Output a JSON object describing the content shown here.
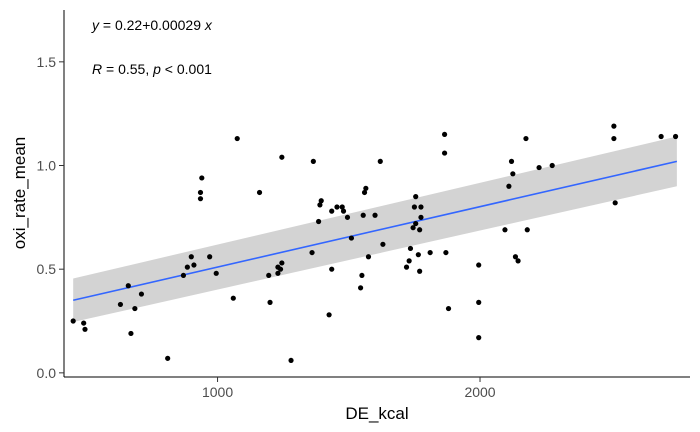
{
  "chart_data": {
    "type": "scatter",
    "xlabel": "DE_kcal",
    "ylabel": "oxi_rate_mean",
    "xlim": [
      415,
      2800
    ],
    "ylim": [
      -0.02,
      1.75
    ],
    "x_ticks": [
      1000,
      2000
    ],
    "x_tick_labels": [
      "1000",
      "2000"
    ],
    "y_ticks": [
      0.0,
      0.5,
      1.0,
      1.5
    ],
    "y_tick_labels": [
      "0.0",
      "0.5",
      "1.0",
      "1.5"
    ],
    "grid": false,
    "annotations": {
      "equation": "y = 0.22+0.00029 x",
      "equation_parts": [
        "y",
        " = 0.22+0.00029 ",
        "x"
      ],
      "stats": "R = 0.55, p < 0.001",
      "stats_parts": [
        "R",
        " = 0.55, ",
        "p",
        " < 0.001"
      ]
    },
    "regression": {
      "x": [
        450,
        2750
      ],
      "y": [
        0.35,
        1.02
      ],
      "ci_lower": [
        0.245,
        0.9
      ],
      "ci_upper": [
        0.455,
        1.14
      ],
      "line_color": "#3366ff",
      "band_color": "#d3d3d3"
    },
    "point_color": "#000000",
    "points": [
      [
        450,
        0.25
      ],
      [
        490,
        0.24
      ],
      [
        495,
        0.21
      ],
      [
        630,
        0.33
      ],
      [
        660,
        0.42
      ],
      [
        670,
        0.19
      ],
      [
        685,
        0.31
      ],
      [
        710,
        0.38
      ],
      [
        810,
        0.07
      ],
      [
        870,
        0.47
      ],
      [
        885,
        0.51
      ],
      [
        900,
        0.56
      ],
      [
        910,
        0.52
      ],
      [
        935,
        0.84
      ],
      [
        935,
        0.87
      ],
      [
        940,
        0.94
      ],
      [
        970,
        0.56
      ],
      [
        995,
        0.48
      ],
      [
        1060,
        0.36
      ],
      [
        1075,
        1.13
      ],
      [
        1160,
        0.87
      ],
      [
        1195,
        0.47
      ],
      [
        1200,
        0.34
      ],
      [
        1230,
        0.48
      ],
      [
        1230,
        0.51
      ],
      [
        1240,
        0.5
      ],
      [
        1245,
        0.53
      ],
      [
        1245,
        1.04
      ],
      [
        1280,
        0.06
      ],
      [
        1360,
        0.58
      ],
      [
        1365,
        1.02
      ],
      [
        1385,
        0.73
      ],
      [
        1390,
        0.81
      ],
      [
        1395,
        0.83
      ],
      [
        1425,
        0.28
      ],
      [
        1435,
        0.5
      ],
      [
        1435,
        0.78
      ],
      [
        1455,
        0.8
      ],
      [
        1475,
        0.8
      ],
      [
        1480,
        0.78
      ],
      [
        1495,
        0.75
      ],
      [
        1510,
        0.65
      ],
      [
        1545,
        0.41
      ],
      [
        1550,
        0.47
      ],
      [
        1555,
        0.76
      ],
      [
        1560,
        0.87
      ],
      [
        1565,
        0.89
      ],
      [
        1575,
        0.56
      ],
      [
        1600,
        0.76
      ],
      [
        1620,
        1.02
      ],
      [
        1630,
        0.62
      ],
      [
        1720,
        0.51
      ],
      [
        1730,
        0.54
      ],
      [
        1735,
        0.6
      ],
      [
        1745,
        0.7
      ],
      [
        1750,
        0.8
      ],
      [
        1755,
        0.72
      ],
      [
        1755,
        0.85
      ],
      [
        1765,
        0.57
      ],
      [
        1770,
        0.49
      ],
      [
        1770,
        0.69
      ],
      [
        1775,
        0.75
      ],
      [
        1775,
        0.8
      ],
      [
        1810,
        0.58
      ],
      [
        1865,
        1.15
      ],
      [
        1865,
        1.06
      ],
      [
        1870,
        0.58
      ],
      [
        1880,
        0.31
      ],
      [
        1995,
        0.52
      ],
      [
        1995,
        0.34
      ],
      [
        1995,
        0.17
      ],
      [
        2095,
        0.69
      ],
      [
        2110,
        0.9
      ],
      [
        2120,
        1.02
      ],
      [
        2125,
        0.96
      ],
      [
        2135,
        0.56
      ],
      [
        2145,
        0.54
      ],
      [
        2175,
        1.13
      ],
      [
        2180,
        0.69
      ],
      [
        2225,
        0.99
      ],
      [
        2275,
        1.0
      ],
      [
        2510,
        1.19
      ],
      [
        2510,
        1.13
      ],
      [
        2515,
        0.82
      ],
      [
        2690,
        1.14
      ],
      [
        2745,
        1.14
      ]
    ]
  }
}
